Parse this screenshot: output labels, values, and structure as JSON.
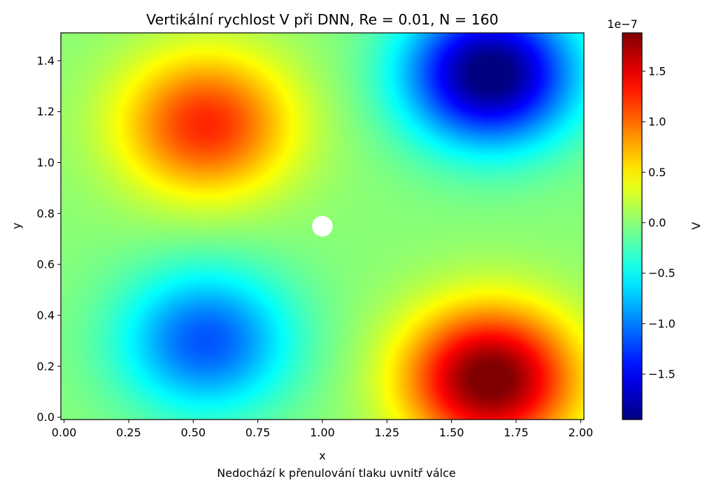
{
  "chart_data": {
    "type": "heatmap",
    "title": "Vertikální rychlost V při DNN, Re = 0.01, N = 160",
    "xlabel": "x",
    "ylabel": "y",
    "caption": "Nedochází k přenulování tlaku uvnitř válce",
    "colormap": "jet",
    "xlim": [
      -0.0125,
      2.0125
    ],
    "ylim": [
      -0.0094,
      1.5094
    ],
    "x_ticks": [
      0.0,
      0.25,
      0.5,
      0.75,
      1.0,
      1.25,
      1.5,
      1.75,
      2.0
    ],
    "x_tick_labels": [
      "0.00",
      "0.25",
      "0.50",
      "0.75",
      "1.00",
      "1.25",
      "1.50",
      "1.75",
      "2.00"
    ],
    "y_ticks": [
      0.0,
      0.2,
      0.4,
      0.6,
      0.8,
      1.0,
      1.2,
      1.4
    ],
    "y_tick_labels": [
      "0.0",
      "0.2",
      "0.4",
      "0.6",
      "0.8",
      "1.0",
      "1.2",
      "1.4"
    ],
    "grid": false,
    "colorbar": {
      "label": "V",
      "offset_text": "1e−7",
      "scale": 1e-07,
      "vmin": -1.95,
      "vmax": 1.88,
      "ticks": [
        -1.5,
        -1.0,
        -0.5,
        0.0,
        0.5,
        1.0,
        1.5
      ],
      "tick_labels": [
        "−1.5",
        "−1.0",
        "−0.5",
        "0.0",
        "0.5",
        "1.0",
        "1.5"
      ]
    },
    "field": {
      "description_units": "V in units of 1e-7",
      "lobes": [
        {
          "x": 0.55,
          "y": 1.15,
          "value": 1.2
        },
        {
          "x": 1.65,
          "y": 1.35,
          "value": -1.95
        },
        {
          "x": 0.55,
          "y": 0.3,
          "value": -1.1
        },
        {
          "x": 1.65,
          "y": 0.15,
          "value": 1.88
        }
      ],
      "obstacle": {
        "shape": "cylinder",
        "center_x": 1.0,
        "center_y": 0.75,
        "radius": 0.04
      }
    }
  }
}
